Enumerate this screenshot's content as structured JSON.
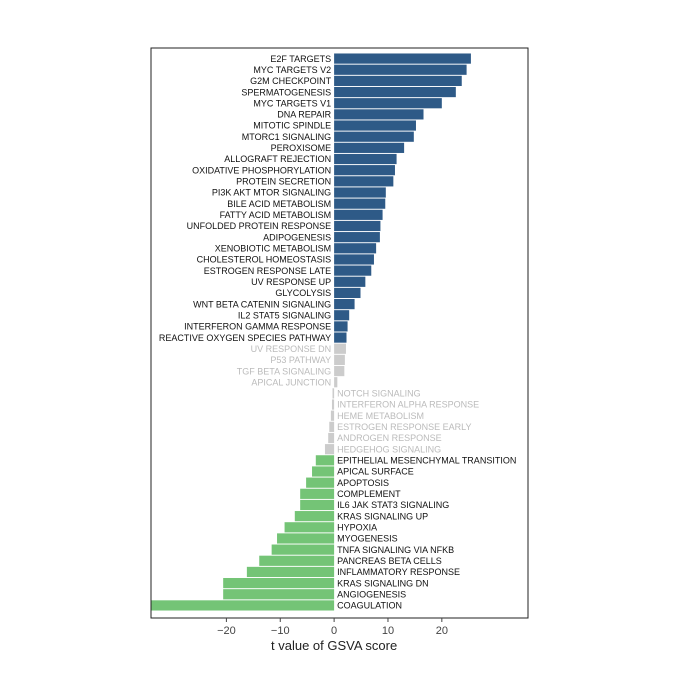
{
  "chart_data": {
    "type": "bar",
    "orientation": "horizontal",
    "xlabel": "t value of GSVA score",
    "xlim": [
      -34,
      36
    ],
    "xticks": [
      -20,
      -10,
      0,
      10,
      20
    ],
    "grid": false,
    "legend": "none",
    "colors": {
      "positive": "#2e5a87",
      "negative": "#74c476",
      "nonsignificant": "#cccccc",
      "label": "#111111",
      "label_faded": "#bbbbbb"
    },
    "categories": [
      "E2F TARGETS",
      "MYC TARGETS V2",
      "G2M CHECKPOINT",
      "SPERMATOGENESIS",
      "MYC TARGETS V1",
      "DNA REPAIR",
      "MITOTIC SPINDLE",
      "MTORC1 SIGNALING",
      "PEROXISOME",
      "ALLOGRAFT REJECTION",
      "OXIDATIVE PHOSPHORYLATION",
      "PROTEIN SECRETION",
      "PI3K AKT MTOR SIGNALING",
      "BILE ACID METABOLISM",
      "FATTY ACID METABOLISM",
      "UNFOLDED PROTEIN RESPONSE",
      "ADIPOGENESIS",
      "XENOBIOTIC METABOLISM",
      "CHOLESTEROL HOMEOSTASIS",
      "ESTROGEN RESPONSE LATE",
      "UV RESPONSE UP",
      "GLYCOLYSIS",
      "WNT BETA CATENIN SIGNALING",
      "IL2 STAT5 SIGNALING",
      "INTERFERON GAMMA RESPONSE",
      "REACTIVE OXYGEN SPECIES PATHWAY",
      "UV RESPONSE DN",
      "P53 PATHWAY",
      "TGF BETA SIGNALING",
      "APICAL JUNCTION",
      "NOTCH SIGNALING",
      "INTERFERON ALPHA RESPONSE",
      "HEME METABOLISM",
      "ESTROGEN RESPONSE EARLY",
      "ANDROGEN RESPONSE",
      "HEDGEHOG SIGNALING",
      "EPITHELIAL MESENCHYMAL TRANSITION",
      "APICAL SURFACE",
      "APOPTOSIS",
      "COMPLEMENT",
      "IL6 JAK STAT3 SIGNALING",
      "KRAS SIGNALING UP",
      "HYPOXIA",
      "MYOGENESIS",
      "TNFA SIGNALING VIA NFKB",
      "PANCREAS BETA CELLS",
      "INFLAMMATORY RESPONSE",
      "KRAS SIGNALING DN",
      "ANGIOGENESIS",
      "COAGULATION"
    ],
    "values": [
      25.4,
      24.6,
      23.7,
      22.6,
      20.0,
      16.6,
      15.2,
      14.8,
      13.0,
      11.6,
      11.3,
      11.0,
      9.6,
      9.5,
      9.0,
      8.6,
      8.5,
      7.8,
      7.4,
      6.9,
      5.8,
      4.9,
      3.8,
      2.8,
      2.5,
      2.3,
      2.2,
      2.0,
      1.9,
      0.6,
      -0.3,
      -0.4,
      -0.6,
      -0.9,
      -1.1,
      -1.7,
      -3.4,
      -4.1,
      -5.2,
      -6.3,
      -6.3,
      -7.3,
      -9.2,
      -10.6,
      -11.6,
      -13.9,
      -16.2,
      -20.6,
      -20.6,
      -34.0
    ],
    "significant": [
      true,
      true,
      true,
      true,
      true,
      true,
      true,
      true,
      true,
      true,
      true,
      true,
      true,
      true,
      true,
      true,
      true,
      true,
      true,
      true,
      true,
      true,
      true,
      true,
      true,
      true,
      false,
      false,
      false,
      false,
      false,
      false,
      false,
      false,
      false,
      false,
      true,
      true,
      true,
      true,
      true,
      true,
      true,
      true,
      true,
      true,
      true,
      true,
      true,
      true
    ]
  }
}
